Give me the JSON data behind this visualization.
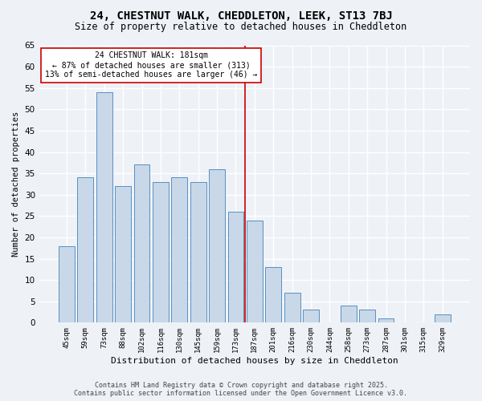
{
  "title1": "24, CHESTNUT WALK, CHEDDLETON, LEEK, ST13 7BJ",
  "title2": "Size of property relative to detached houses in Cheddleton",
  "xlabel": "Distribution of detached houses by size in Cheddleton",
  "ylabel": "Number of detached properties",
  "categories": [
    "45sqm",
    "59sqm",
    "73sqm",
    "88sqm",
    "102sqm",
    "116sqm",
    "130sqm",
    "145sqm",
    "159sqm",
    "173sqm",
    "187sqm",
    "201sqm",
    "216sqm",
    "230sqm",
    "244sqm",
    "258sqm",
    "273sqm",
    "287sqm",
    "301sqm",
    "315sqm",
    "329sqm"
  ],
  "values": [
    18,
    34,
    54,
    32,
    37,
    33,
    34,
    33,
    36,
    26,
    24,
    13,
    7,
    3,
    0,
    4,
    3,
    1,
    0,
    0,
    2
  ],
  "bar_color": "#c8d8e8",
  "bar_edge_color": "#5a8fc0",
  "vline_color": "#cc0000",
  "annotation_title": "24 CHESTNUT WALK: 181sqm",
  "annotation_line1": "← 87% of detached houses are smaller (313)",
  "annotation_line2": "13% of semi-detached houses are larger (46) →",
  "annotation_box_color": "white",
  "annotation_box_edge": "#cc0000",
  "ylim": [
    0,
    65
  ],
  "yticks": [
    0,
    5,
    10,
    15,
    20,
    25,
    30,
    35,
    40,
    45,
    50,
    55,
    60,
    65
  ],
  "footer1": "Contains HM Land Registry data © Crown copyright and database right 2025.",
  "footer2": "Contains public sector information licensed under the Open Government Licence v3.0.",
  "bg_color": "#eef2f7",
  "plot_bg_color": "#eef2f7",
  "grid_color": "white"
}
